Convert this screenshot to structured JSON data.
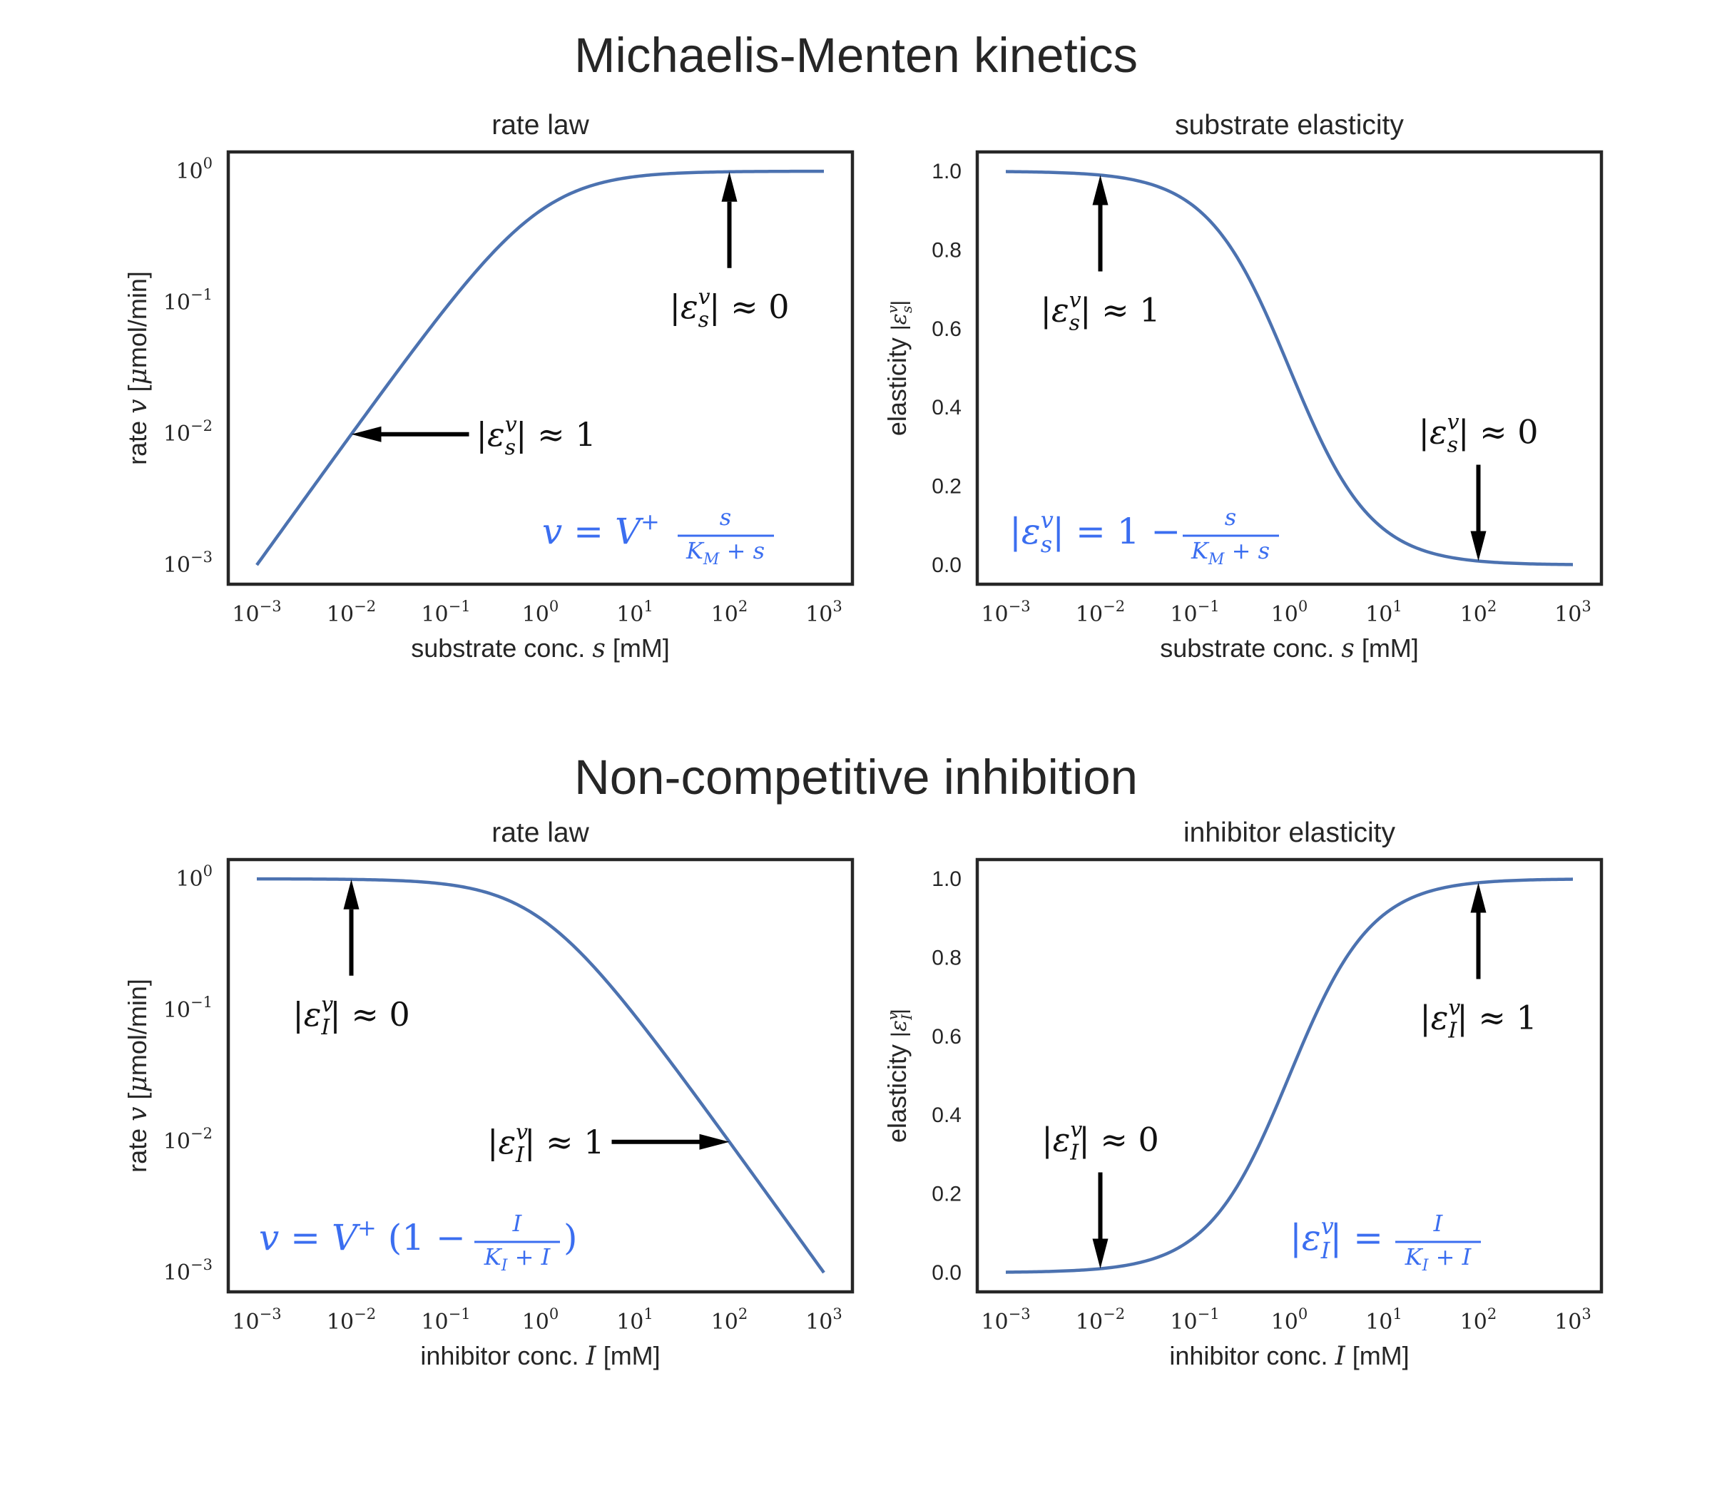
{
  "figure": {
    "sections": [
      {
        "title": "Michaelis-Menten kinetics"
      },
      {
        "title": "Non-competitive inhibition"
      }
    ]
  },
  "colors": {
    "curve": "#4c72b0",
    "formula": "#3b6ef0",
    "arrow": "#000000",
    "frame": "#262626"
  },
  "chart_data": [
    {
      "type": "line",
      "title": "rate law",
      "xlabel": "substrate conc. s [mM]",
      "ylabel": "rate v [μmol/min]",
      "xscale": "log",
      "yscale": "log",
      "xlim": [
        0.001,
        1000
      ],
      "ylim": [
        0.001,
        1
      ],
      "xticks": [
        "10^-3",
        "10^-2",
        "10^-1",
        "10^0",
        "10^1",
        "10^2",
        "10^3"
      ],
      "yticks": [
        "10^-3",
        "10^-2",
        "10^-1",
        "10^0"
      ],
      "grid": false,
      "series": [
        {
          "x": [
            0.001,
            0.01,
            0.1,
            1,
            10,
            100,
            1000
          ],
          "y": [
            0.001,
            0.0099,
            0.0909,
            0.5,
            0.909,
            0.99,
            0.999
          ]
        }
      ],
      "annotations": [
        {
          "text": "|ε_s^v| ≈ 0",
          "x": 100,
          "y": 0.99,
          "arrow": "up"
        },
        {
          "text": "|ε_s^v| ≈ 1",
          "x": 0.01,
          "y": 0.0099,
          "arrow": "left"
        }
      ],
      "formula": "v = V⁺ s/(K_M + s)"
    },
    {
      "type": "line",
      "title": "substrate elasticity",
      "xlabel": "substrate conc. s [mM]",
      "ylabel": "elasticity |ε_s^v|",
      "xscale": "log",
      "yscale": "linear",
      "xlim": [
        0.001,
        1000
      ],
      "ylim": [
        0.0,
        1.0
      ],
      "xticks": [
        "10^-3",
        "10^-2",
        "10^-1",
        "10^0",
        "10^1",
        "10^2",
        "10^3"
      ],
      "yticks": [
        "0.0",
        "0.2",
        "0.4",
        "0.6",
        "0.8",
        "1.0"
      ],
      "grid": false,
      "series": [
        {
          "x": [
            0.001,
            0.01,
            0.1,
            1,
            10,
            100,
            1000
          ],
          "y": [
            0.999,
            0.99,
            0.909,
            0.5,
            0.0909,
            0.0099,
            0.001
          ]
        }
      ],
      "annotations": [
        {
          "text": "|ε_s^v| ≈ 1",
          "x": 0.01,
          "y": 0.99,
          "arrow": "up"
        },
        {
          "text": "|ε_s^v| ≈ 0",
          "x": 100,
          "y": 0.0099,
          "arrow": "down"
        }
      ],
      "formula": "|ε_s^v| = 1 − s/(K_M + s)"
    },
    {
      "type": "line",
      "title": "rate law",
      "xlabel": "inhibitor conc. I [mM]",
      "ylabel": "rate v [μmol/min]",
      "xscale": "log",
      "yscale": "log",
      "xlim": [
        0.001,
        1000
      ],
      "ylim": [
        0.001,
        1
      ],
      "xticks": [
        "10^-3",
        "10^-2",
        "10^-1",
        "10^0",
        "10^1",
        "10^2",
        "10^3"
      ],
      "yticks": [
        "10^-3",
        "10^-2",
        "10^-1",
        "10^0"
      ],
      "grid": false,
      "series": [
        {
          "x": [
            0.001,
            0.01,
            0.1,
            1,
            10,
            100,
            1000
          ],
          "y": [
            0.999,
            0.99,
            0.909,
            0.5,
            0.0909,
            0.0099,
            0.001
          ]
        }
      ],
      "annotations": [
        {
          "text": "|ε_I^v| ≈ 0",
          "x": 0.01,
          "y": 0.99,
          "arrow": "up"
        },
        {
          "text": "|ε_I^v| ≈ 1",
          "x": 100,
          "y": 0.0099,
          "arrow": "right"
        }
      ],
      "formula": "v = V⁺ (1 − I/(K_I + I))"
    },
    {
      "type": "line",
      "title": "inhibitor elasticity",
      "xlabel": "inhibitor conc. I [mM]",
      "ylabel": "elasticity |ε_I^v|",
      "xscale": "log",
      "yscale": "linear",
      "xlim": [
        0.001,
        1000
      ],
      "ylim": [
        0.0,
        1.0
      ],
      "xticks": [
        "10^-3",
        "10^-2",
        "10^-1",
        "10^0",
        "10^1",
        "10^2",
        "10^3"
      ],
      "yticks": [
        "0.0",
        "0.2",
        "0.4",
        "0.6",
        "0.8",
        "1.0"
      ],
      "grid": false,
      "series": [
        {
          "x": [
            0.001,
            0.01,
            0.1,
            1,
            10,
            100,
            1000
          ],
          "y": [
            0.001,
            0.0099,
            0.0909,
            0.5,
            0.909,
            0.99,
            0.999
          ]
        }
      ],
      "annotations": [
        {
          "text": "|ε_I^v| ≈ 1",
          "x": 100,
          "y": 0.99,
          "arrow": "up"
        },
        {
          "text": "|ε_I^v| ≈ 0",
          "x": 0.01,
          "y": 0.0099,
          "arrow": "down"
        }
      ],
      "formula": "|ε_I^v| = I/(K_I + I)"
    }
  ]
}
